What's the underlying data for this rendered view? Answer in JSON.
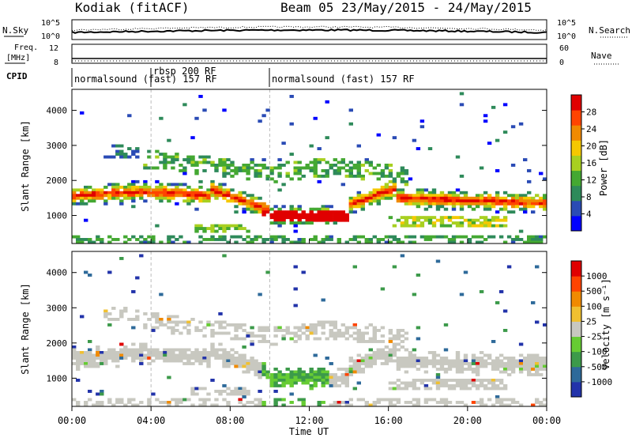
{
  "header": {
    "station": "Kodiak (fitACF)",
    "beam_dates": "Beam 05 23/May/2015 - 24/May/2015"
  },
  "chart_data": [
    {
      "type": "line",
      "name": "noise-panel",
      "left_label": "N.Sky",
      "right_label": "N.Search",
      "left_ticks": [
        "10^5",
        "10^0"
      ],
      "right_ticks": [
        "10^5",
        "10^0"
      ]
    },
    {
      "type": "line",
      "name": "freq-panel",
      "left_label_1": "Freq.",
      "left_label_2": "[MHz]",
      "right_label": "Nave",
      "left_ticks": [
        "12",
        "8"
      ],
      "right_ticks": [
        "60",
        "0"
      ]
    },
    {
      "type": "table",
      "name": "cpid-panel",
      "label": "CPID",
      "segments": [
        {
          "start": 0.0,
          "end": 4.0,
          "text": "normalsound (fast) 157 RF"
        },
        {
          "start": 4.0,
          "end": 10.0,
          "text": "rbsp 200 RF"
        },
        {
          "start": 10.0,
          "end": 24.0,
          "text": "normalsound (fast) 157 RF"
        }
      ]
    },
    {
      "type": "heatmap",
      "name": "power-panel",
      "ylabel": "Slant Range [km]",
      "yticks": [
        1000,
        2000,
        3000,
        4000
      ],
      "ylim": [
        200,
        4600
      ],
      "colorbar_label": "Power [dB]",
      "colorbar_ticks": [
        "28",
        "24",
        "20",
        "16",
        "12",
        "8",
        "4"
      ],
      "colors": [
        "#0000ff",
        "#2a4bb5",
        "#2e8a5a",
        "#44a832",
        "#a8d020",
        "#f5c800",
        "#f08a00",
        "#ff4400",
        "#e00000"
      ]
    },
    {
      "type": "heatmap",
      "name": "velocity-panel",
      "ylabel": "Slant Range [km]",
      "yticks": [
        1000,
        2000,
        3000,
        4000
      ],
      "ylim": [
        200,
        4600
      ],
      "colorbar_label": "Velocity [m s⁻¹]",
      "colorbar_ticks": [
        "1000",
        "500",
        "100",
        "25",
        "-25",
        "-100",
        "-500",
        "-1000"
      ],
      "colors": [
        "#2233aa",
        "#2e6a9a",
        "#3c9a4a",
        "#66cc33",
        "#c8c8c0",
        "#f0c030",
        "#f08a00",
        "#ff4400",
        "#e00000"
      ]
    }
  ],
  "xaxis": {
    "label": "Time UT",
    "range": [
      0,
      24
    ],
    "ticks": [
      "00:00",
      "04:00",
      "08:00",
      "12:00",
      "16:00",
      "20:00",
      "00:00"
    ]
  }
}
